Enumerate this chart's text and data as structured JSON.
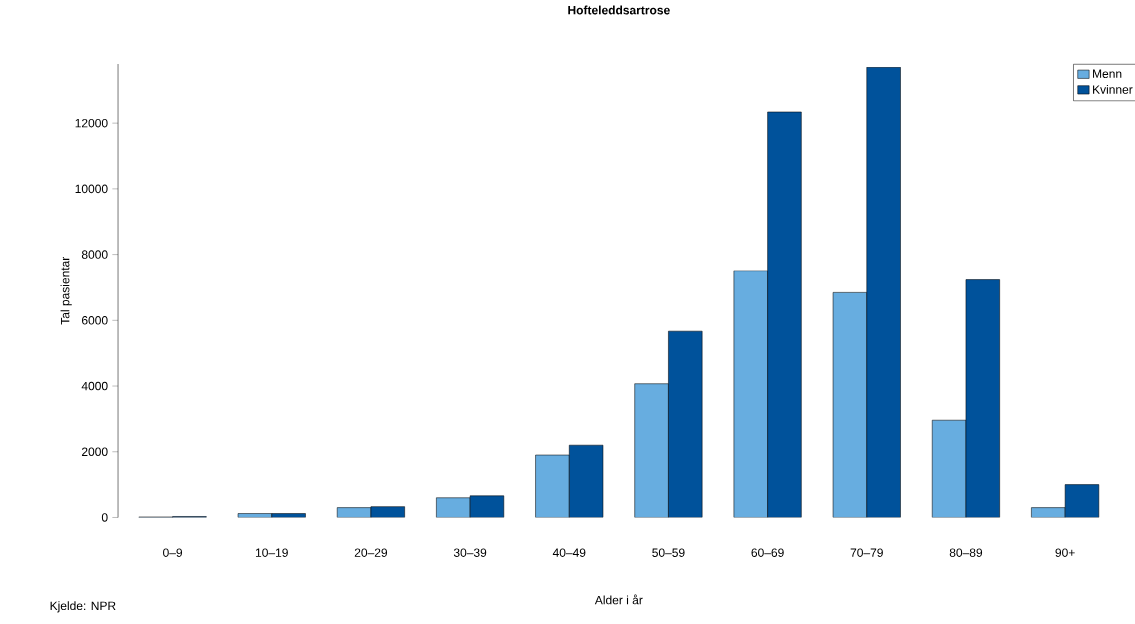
{
  "chart_data": {
    "type": "bar",
    "title": "Hofteleddsartrose",
    "xlabel": "Alder i år",
    "ylabel": "Tal pasientar",
    "categories": [
      "0–9",
      "10–19",
      "20–29",
      "30–39",
      "40–49",
      "50–59",
      "60–69",
      "70–79",
      "80–89",
      "90+"
    ],
    "series": [
      {
        "name": "Menn",
        "color": "#67ade0",
        "values": [
          15,
          120,
          300,
          600,
          1900,
          4070,
          7510,
          6850,
          2960,
          300
        ]
      },
      {
        "name": "Kvinner",
        "color": "#00529b",
        "values": [
          30,
          120,
          330,
          660,
          2200,
          5670,
          12340,
          13700,
          7240,
          1000
        ]
      }
    ],
    "ylim": [
      0,
      13800
    ],
    "yticks": [
      0,
      2000,
      4000,
      6000,
      8000,
      10000,
      12000
    ],
    "grid": false,
    "legend": "top right",
    "annotations": [
      "Kjelde: NPR"
    ]
  }
}
